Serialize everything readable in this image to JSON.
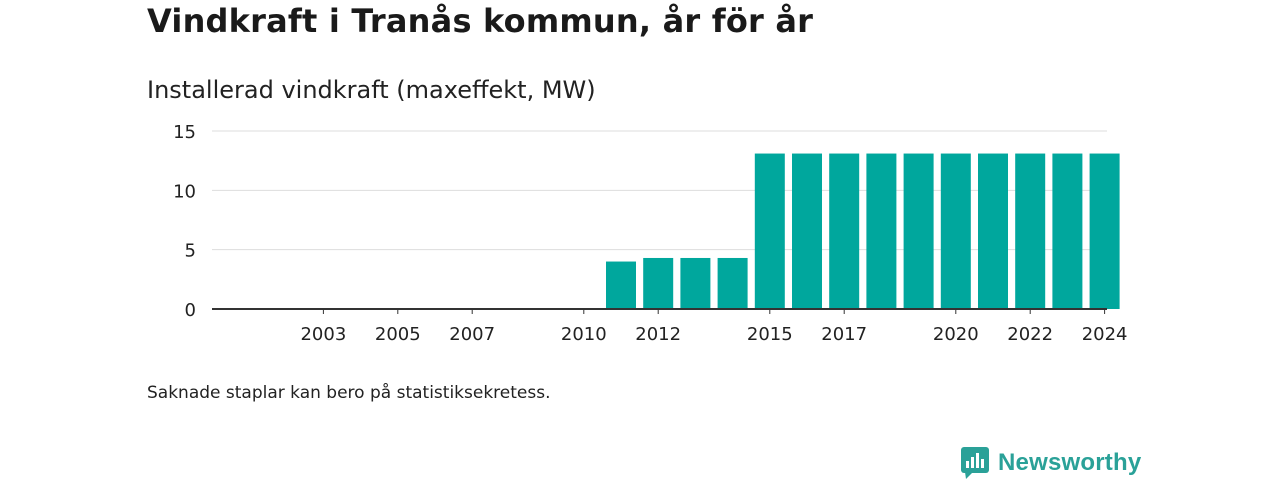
{
  "title": "Vindkraft i Tranås kommun, år för år",
  "subtitle": "Installerad vindkraft (maxeffekt, MW)",
  "footnote": "Saknade staplar kan bero på statistiksekretess.",
  "brand": {
    "name": "Newsworthy",
    "icon": "newsworthy-logo-icon"
  },
  "colors": {
    "bar": "#00a79d",
    "grid": "#dddddd",
    "axis": "#333333",
    "brand": "#2aa198"
  },
  "chart_data": {
    "type": "bar",
    "title": "Installerad vindkraft (maxeffekt, MW)",
    "xlabel": "",
    "ylabel": "",
    "ylim": [
      0,
      15
    ],
    "yticks": [
      0,
      5,
      10,
      15
    ],
    "grid": true,
    "x_range": [
      2001,
      2025
    ],
    "x_tick_labels": [
      "2003",
      "2005",
      "2007",
      "2010",
      "2012",
      "2015",
      "2017",
      "2020",
      "2022",
      "2024"
    ],
    "categories": [
      "2011",
      "2012",
      "2013",
      "2014",
      "2015",
      "2016",
      "2017",
      "2018",
      "2019",
      "2020",
      "2021",
      "2022",
      "2023",
      "2024"
    ],
    "values": [
      4.0,
      4.3,
      4.3,
      4.3,
      13.1,
      13.1,
      13.1,
      13.1,
      13.1,
      13.1,
      13.1,
      13.1,
      13.1,
      13.1
    ]
  }
}
